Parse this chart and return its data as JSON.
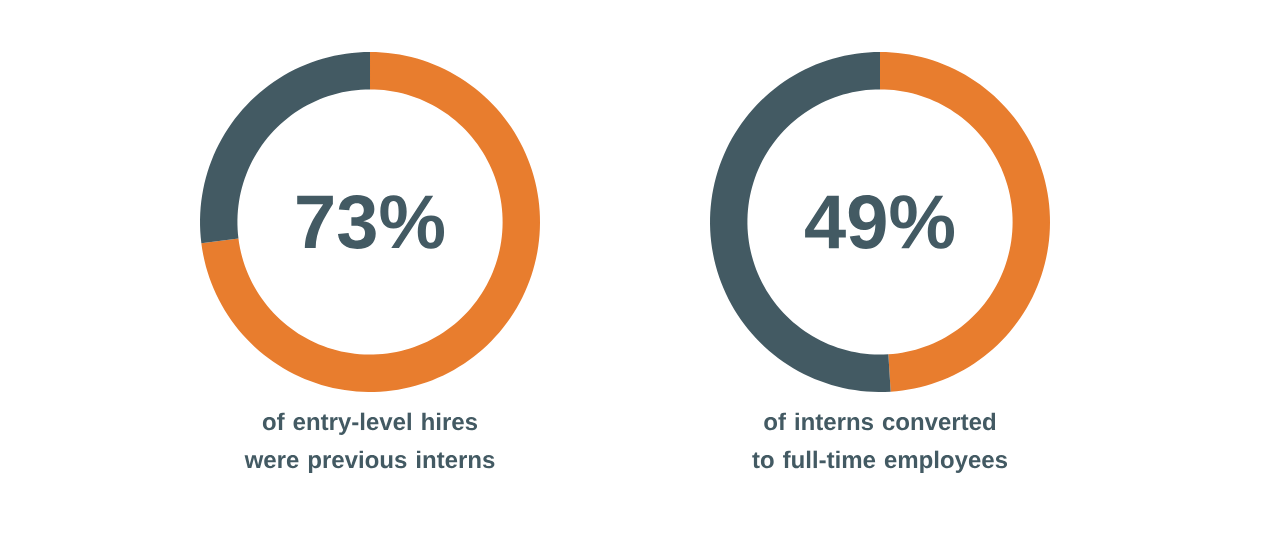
{
  "chart_data": [
    {
      "type": "donut",
      "categories": [
        null,
        null
      ],
      "values": [
        73,
        27
      ],
      "colors": [
        "#e87d2e",
        "#435a63"
      ],
      "annotations": [
        "73%"
      ],
      "title": "of entry-level hires were previous interns"
    },
    {
      "type": "donut",
      "categories": [
        null,
        null
      ],
      "values": [
        49,
        51
      ],
      "colors": [
        "#e87d2e",
        "#435a63"
      ],
      "annotations": [
        "49%"
      ],
      "title": "of interns converted to full-time employees"
    }
  ]
}
